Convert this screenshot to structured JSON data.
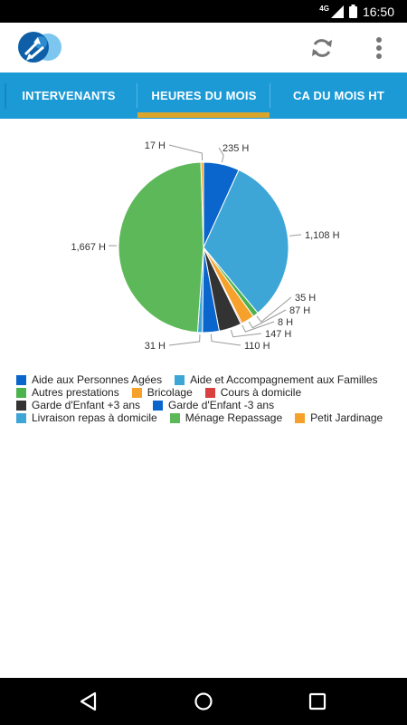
{
  "status_bar": {
    "network": "4G",
    "time": "16:50"
  },
  "app_bar": {
    "logo": "app-logo",
    "refresh_icon": "refresh-icon",
    "menu_icon": "more-vert-icon"
  },
  "tabs": [
    {
      "label": "INTERVENANTS",
      "selected": false
    },
    {
      "label": "HEURES DU MOIS",
      "selected": true
    },
    {
      "label": "CA DU MOIS HT",
      "selected": false
    }
  ],
  "colors": {
    "primary": "#1b9ad6",
    "indicator": "#d9a52b"
  },
  "chart_data": {
    "type": "pie",
    "unit": "H",
    "slices": [
      {
        "name": "Aide aux Personnes Agées",
        "value": 235,
        "label": "235 H",
        "color": "#0a66cc"
      },
      {
        "name": "Aide et Accompagnement aux Familles",
        "value": 1108,
        "label": "1,108 H",
        "color": "#3ea6d6"
      },
      {
        "name": "Autres prestations",
        "value": 35,
        "label": "35 H",
        "color": "#4cb24c"
      },
      {
        "name": "Bricolage",
        "value": 87,
        "label": "87 H",
        "color": "#f5a12b"
      },
      {
        "name": "Cours à domicile",
        "value": 8,
        "label": "8 H",
        "color": "#d94040"
      },
      {
        "name": "Garde d'Enfant +3 ans",
        "value": 147,
        "label": "147 H",
        "color": "#333333"
      },
      {
        "name": "Garde d'Enfant -3 ans",
        "value": 110,
        "label": "110 H",
        "color": "#0a66cc"
      },
      {
        "name": "Livraison repas à domicile",
        "value": 31,
        "label": "31 H",
        "color": "#3ea6d6"
      },
      {
        "name": "Ménage Repassage",
        "value": 1667,
        "label": "1,667 H",
        "color": "#5db85a"
      },
      {
        "name": "Petit Jardinage",
        "value": 17,
        "label": "17 H",
        "color": "#f5a12b"
      }
    ],
    "legend_rows": [
      [
        0,
        1
      ],
      [
        2,
        3,
        4
      ],
      [
        5,
        6
      ],
      [
        7,
        8,
        9
      ]
    ],
    "legend_position": "bottom"
  },
  "nav": {
    "back": "back-icon",
    "home": "home-icon",
    "recents": "recents-icon"
  }
}
